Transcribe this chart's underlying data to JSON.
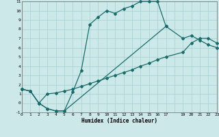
{
  "xlabel": "Humidex (Indice chaleur)",
  "bg_color": "#cce8e8",
  "grid_color": "#aad4d4",
  "line_color": "#1a6b6b",
  "xlim": [
    0,
    23
  ],
  "ylim": [
    -1,
    11
  ],
  "xtick_vals": [
    0,
    1,
    2,
    3,
    4,
    5,
    6,
    7,
    8,
    9,
    10,
    11,
    12,
    13,
    14,
    15,
    16,
    17,
    19,
    20,
    21,
    22,
    23
  ],
  "ytick_vals": [
    -1,
    0,
    1,
    2,
    3,
    4,
    5,
    6,
    7,
    8,
    9,
    10,
    11
  ],
  "curve1_x": [
    0,
    1,
    2,
    3,
    4,
    5,
    6,
    7,
    8,
    9,
    10,
    11,
    12,
    13,
    14,
    15,
    16,
    17
  ],
  "curve1_y": [
    1.5,
    1.3,
    0.0,
    -0.6,
    -0.85,
    -0.85,
    1.2,
    3.5,
    8.5,
    9.3,
    10.0,
    9.7,
    10.2,
    10.5,
    11.0,
    11.0,
    11.0,
    8.3
  ],
  "curve2_x": [
    0,
    1,
    2,
    3,
    4,
    5,
    6,
    7,
    8,
    9,
    10,
    11,
    12,
    13,
    14,
    15,
    16,
    17,
    19,
    20,
    21,
    22,
    23
  ],
  "curve2_y": [
    1.5,
    1.3,
    0.0,
    1.0,
    1.1,
    1.3,
    1.5,
    1.8,
    2.1,
    2.4,
    2.7,
    3.0,
    3.3,
    3.6,
    4.0,
    4.3,
    4.7,
    5.0,
    5.5,
    6.5,
    7.0,
    7.0,
    6.5
  ],
  "curve3_x": [
    0,
    1,
    2,
    3,
    4,
    5,
    17,
    19,
    20,
    21,
    22,
    23
  ],
  "curve3_y": [
    1.5,
    1.3,
    0.0,
    -0.6,
    -0.85,
    -0.85,
    8.3,
    7.0,
    7.3,
    6.8,
    6.3,
    6.0
  ],
  "marker_size": 2.0,
  "lw": 0.9
}
